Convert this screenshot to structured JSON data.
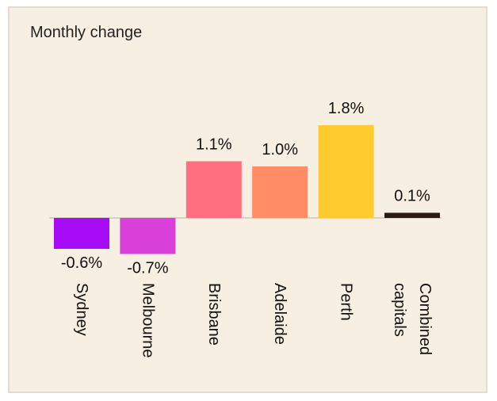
{
  "chart_data": {
    "type": "bar",
    "title": "Monthly change",
    "categories": [
      [
        "Sydney"
      ],
      [
        "Melbourne"
      ],
      [
        "Brisbane"
      ],
      [
        "Adelaide"
      ],
      [
        "Perth"
      ],
      [
        "Combined",
        "capitals"
      ]
    ],
    "values": [
      -0.6,
      -0.7,
      1.1,
      1.0,
      1.8,
      0.1
    ],
    "value_labels": [
      "-0.6%",
      "-0.7%",
      "1.1%",
      "1.0%",
      "1.8%",
      "0.1%"
    ],
    "colors": [
      "#a60cf5",
      "#d93fd9",
      "#ff6f7f",
      "#ff8c65",
      "#ffcb2f",
      "#2b1a10"
    ],
    "xlabel": "",
    "ylabel": "",
    "grid": false,
    "legend": "none"
  }
}
